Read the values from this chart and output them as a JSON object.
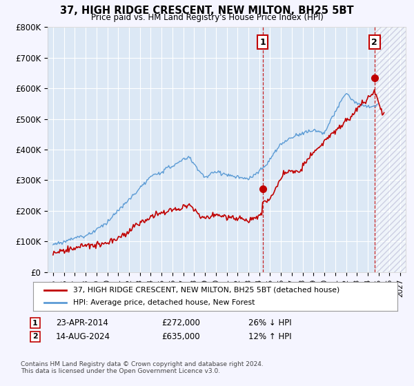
{
  "title": "37, HIGH RIDGE CRESCENT, NEW MILTON, BH25 5BT",
  "subtitle": "Price paid vs. HM Land Registry's House Price Index (HPI)",
  "legend_entry1": "37, HIGH RIDGE CRESCENT, NEW MILTON, BH25 5BT (detached house)",
  "legend_entry2": "HPI: Average price, detached house, New Forest",
  "annotation1_date": "23-APR-2014",
  "annotation1_price": "£272,000",
  "annotation1_hpi": "26% ↓ HPI",
  "annotation2_date": "14-AUG-2024",
  "annotation2_price": "£635,000",
  "annotation2_hpi": "12% ↑ HPI",
  "footnote": "Contains HM Land Registry data © Crown copyright and database right 2024.\nThis data is licensed under the Open Government Licence v3.0.",
  "hpi_color": "#5b9bd5",
  "price_color": "#c00000",
  "bg_color": "#f5f5ff",
  "chart_bg": "#dce8f5",
  "grid_color": "#ffffff",
  "ylim": [
    0,
    800000
  ],
  "yticks": [
    0,
    100000,
    200000,
    300000,
    400000,
    500000,
    600000,
    700000,
    800000
  ],
  "ytick_labels": [
    "£0",
    "£100K",
    "£200K",
    "£300K",
    "£400K",
    "£500K",
    "£600K",
    "£700K",
    "£800K"
  ],
  "sale1_year": 2014.31,
  "sale1_price": 272000,
  "sale2_year": 2024.62,
  "sale2_price": 635000,
  "xmin": 1995,
  "xmax": 2027
}
